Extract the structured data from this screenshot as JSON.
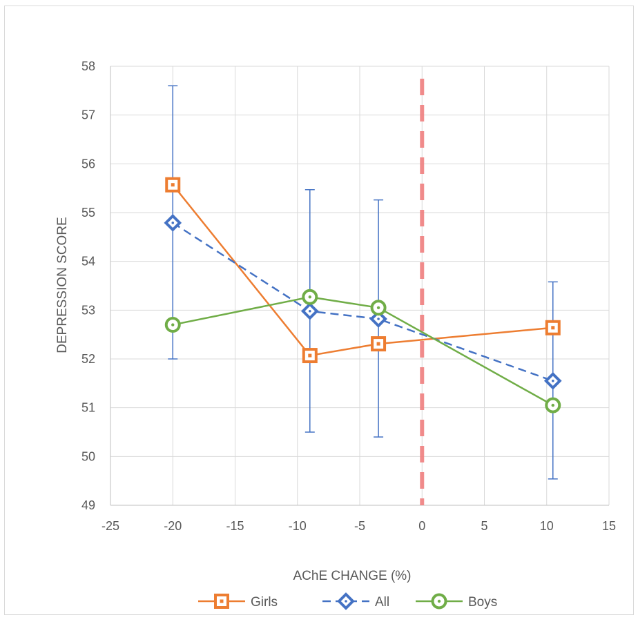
{
  "chart_data": {
    "type": "scatter",
    "xlabel": "AChE CHANGE (%)",
    "ylabel": "DEPRESSION SCORE",
    "xlim": [
      -25,
      15
    ],
    "ylim": [
      49,
      58
    ],
    "x_ticks": [
      "-25",
      "-20",
      "-15",
      "-10",
      "-5",
      "0",
      "5",
      "10",
      "15"
    ],
    "y_ticks": [
      "49",
      "50",
      "51",
      "52",
      "53",
      "54",
      "55",
      "56",
      "57",
      "58"
    ],
    "grid": true,
    "legend_position": "bottom",
    "reference_line": {
      "x": 0,
      "color": "#f08080",
      "style": "dashed"
    },
    "series": [
      {
        "name": "Girls",
        "color": "#ed7d31",
        "marker": "square",
        "line": "solid",
        "points": [
          {
            "x": -20,
            "y": 55.57
          },
          {
            "x": -9,
            "y": 52.07
          },
          {
            "x": -3.5,
            "y": 52.31
          },
          {
            "x": 10.5,
            "y": 52.64
          }
        ]
      },
      {
        "name": "All",
        "color": "#4472c4",
        "marker": "diamond",
        "line": "dashed",
        "points": [
          {
            "x": -20,
            "y": 54.79,
            "err_low": 52.0,
            "err_high": 57.6
          },
          {
            "x": -9,
            "y": 52.98,
            "err_low": 50.5,
            "err_high": 55.47
          },
          {
            "x": -3.5,
            "y": 52.82,
            "err_low": 50.4,
            "err_high": 55.26
          },
          {
            "x": 10.5,
            "y": 51.55,
            "err_low": 49.54,
            "err_high": 53.58
          }
        ]
      },
      {
        "name": "Boys",
        "color": "#70ad47",
        "marker": "circle",
        "line": "solid",
        "points": [
          {
            "x": -20,
            "y": 52.7
          },
          {
            "x": -9,
            "y": 53.27
          },
          {
            "x": -3.5,
            "y": 53.05
          },
          {
            "x": 10.5,
            "y": 51.05
          }
        ]
      }
    ]
  }
}
